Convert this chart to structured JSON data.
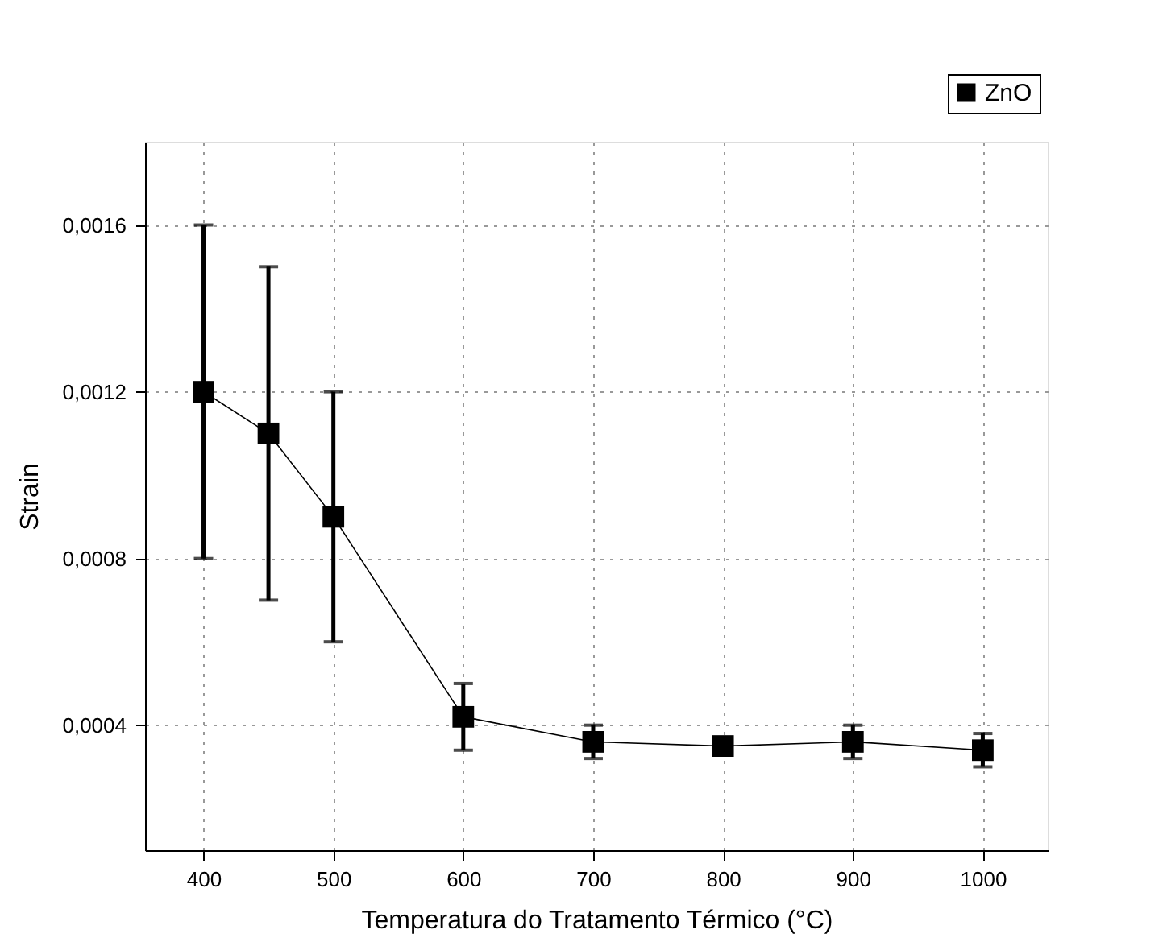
{
  "chart_data": {
    "type": "line",
    "xlabel": "Temperatura do Tratamento Térmico (°C)",
    "ylabel": "Strain",
    "x": [
      400,
      450,
      500,
      600,
      700,
      800,
      900,
      1000
    ],
    "series": [
      {
        "name": "ZnO",
        "color": "#000000",
        "values": [
          0.0012,
          0.0011,
          0.0009,
          0.00042,
          0.00036,
          0.00035,
          0.00036,
          0.00034
        ],
        "errors": [
          0.0004,
          0.0004,
          0.0003,
          [
            0.00034,
            0.0005
          ],
          [
            0.00032,
            0.0004
          ],
          null,
          [
            0.00032,
            0.0004
          ],
          [
            0.0003,
            0.00038
          ]
        ]
      }
    ],
    "xlim": [
      355,
      1050
    ],
    "xticks": [
      400,
      500,
      600,
      700,
      800,
      900,
      1000
    ],
    "ylim": [
      0.0001,
      0.0018
    ],
    "yticks": [
      {
        "value": 0.0004,
        "label": "0,0004"
      },
      {
        "value": 0.0008,
        "label": "0,0008"
      },
      {
        "value": 0.0012,
        "label": "0,0012"
      },
      {
        "value": 0.0016,
        "label": "0,0016"
      }
    ],
    "grid": true,
    "legend": "top right",
    "marker": "square",
    "line_style": "solid"
  }
}
